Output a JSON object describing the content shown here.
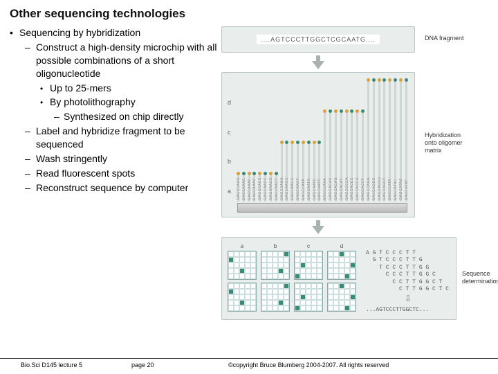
{
  "title": "Other sequencing technologies",
  "bullets": {
    "l1": "Sequencing by hybridization",
    "l2a": "Construct a high-density microchip with all possible combinations of a short oligonucleotide",
    "l3a": "Up to 25-mers",
    "l3b": "By photolithography",
    "l4a": "Synthesized on chip directly",
    "l2b": "Label and hybridize fragment to be sequenced",
    "l2c": "Wash stringently",
    "l2d": "Read fluorescent spots",
    "l2e": "Reconstruct sequence by computer"
  },
  "footer": {
    "left": "Bio.Sci D145 lecture 5",
    "center": "page 20",
    "right": "©copyright Bruce Blumberg 2004-2007. All rights reserved"
  },
  "diagram": {
    "fragment": "....AGTCCCTTGGCTCGCAATG....",
    "label_fragment": "DNA fragment",
    "label_matrix_l1": "Hybridization",
    "label_matrix_l2": "onto oligomer",
    "label_matrix_l3": "matrix",
    "label_seqdet_l1": "Sequence",
    "label_seqdet_l2": "determination",
    "rows": [
      "a",
      "b",
      "c",
      "d"
    ],
    "matrix_sequences": [
      "GAGCCAAG",
      "GAGCAAAC",
      "GAGCAAAT",
      "GAGCAAAC",
      "GAGCCACC",
      "GAGCAACC",
      "GAGCAACG",
      "GAGCAACT",
      "GAGCCAGA",
      "GAGCAAGC",
      "GAGCAAGG",
      "GAGCAAGT",
      "GAGCCATA",
      "GAGCAATG",
      "GAGCAATC",
      "GAGCAATT",
      "GAGCCAAA",
      "GAGCACAC",
      "GAGCACAG",
      "GAGCACAT",
      "GAGCCCCA",
      "GAGCACCC",
      "GAGCACCG",
      "GAGCACCT",
      "GAGCCAGA",
      "GAGCAGGC",
      "GAGCAGGG",
      "GAGCAGGT",
      "GAGCCATA",
      "GAGCATAC",
      "GAGCATAG",
      "GAGCATAT"
    ],
    "tip_colors": [
      "#d9a23a",
      "#3a8a78",
      "#d9a23a",
      "#3a8a78",
      "#d9a23a",
      "#3a8a78",
      "#d9a23a",
      "#3a8a78",
      "#d9a23a",
      "#3a8a78",
      "#d9a23a",
      "#3a8a78",
      "#d9a23a",
      "#3a8a78",
      "#d9a23a",
      "#3a8a78",
      "#d9a23a",
      "#3a8a78",
      "#d9a23a",
      "#3a8a78",
      "#d9a23a",
      "#3a8a78",
      "#d9a23a",
      "#3a8a78",
      "#d9a23a",
      "#3a8a78",
      "#d9a23a",
      "#3a8a78",
      "#d9a23a",
      "#3a8a78",
      "#d9a23a",
      "#3a8a78"
    ],
    "grid_labels": [
      "a",
      "b",
      "c",
      "d"
    ],
    "grid_hits": [
      [
        [
          1,
          0
        ],
        [
          3,
          2
        ]
      ],
      [
        [
          3,
          3
        ],
        [
          0,
          4
        ]
      ],
      [
        [
          2,
          1
        ],
        [
          4,
          0
        ]
      ],
      [
        [
          0,
          2
        ],
        [
          2,
          4
        ],
        [
          4,
          3
        ]
      ]
    ],
    "stack": [
      "A G T C C C T T",
      "  G T C C C T T G",
      "    T C C C T T G G",
      "      C C C T T G G C",
      "        C C T T G G C T",
      "          C T T G G C T C"
    ],
    "final": "...AGTCCCTTGGCTC..."
  },
  "colors": {
    "panel_bg": "#e9eeec",
    "panel_border": "#b9c4c0",
    "hit": "#3a8a78",
    "arrow": "#a8b2ae"
  }
}
